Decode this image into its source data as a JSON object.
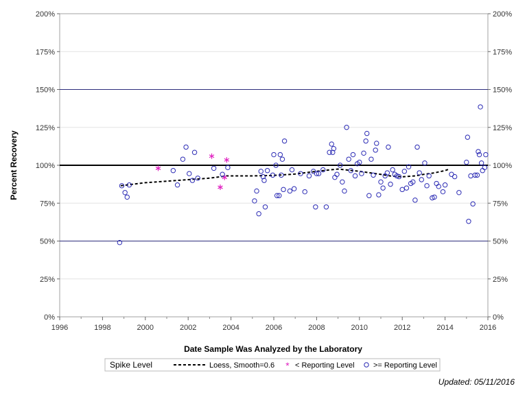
{
  "chart_data": {
    "type": "scatter",
    "xlabel": "Date Sample Was Analyzed by the Laboratory",
    "ylabel": "Percent Recovery",
    "xlim": [
      1996,
      2016
    ],
    "ylim": [
      0,
      200
    ],
    "x_ticks": [
      1996,
      1998,
      2000,
      2002,
      2004,
      2006,
      2008,
      2010,
      2012,
      2014,
      2016
    ],
    "y_ticks": [
      0,
      25,
      50,
      75,
      100,
      125,
      150,
      175,
      200
    ],
    "y_tick_labels": [
      "0%",
      "25%",
      "50%",
      "75%",
      "100%",
      "125%",
      "150%",
      "175%",
      "200%"
    ],
    "reference_lines": [
      {
        "y": 100,
        "style": "thick-black"
      },
      {
        "y": 150,
        "style": "thin-navy"
      },
      {
        "y": 50,
        "style": "thin-navy"
      }
    ],
    "grid": true,
    "right_axis": true,
    "legend": {
      "title": "Spike Level",
      "position": "bottom",
      "items": [
        {
          "label": "Loess, Smooth=0.6",
          "marker": "dashed-line",
          "color": "#000000"
        },
        {
          "label": "< Reporting Level",
          "marker": "asterisk",
          "color": "#e020c0"
        },
        {
          "label": ">= Reporting Level",
          "marker": "circle",
          "color": "#2a2ab4"
        }
      ]
    },
    "series": [
      {
        "name": "Loess, Smooth=0.6",
        "style": "dashed",
        "color": "#000000",
        "points": [
          [
            1998.85,
            86.5
          ],
          [
            2000,
            88.5
          ],
          [
            2001,
            89.5
          ],
          [
            2002,
            90.5
          ],
          [
            2003,
            91.5
          ],
          [
            2003.8,
            93
          ],
          [
            2005,
            93
          ],
          [
            2006,
            93.3
          ],
          [
            2007,
            94.2
          ],
          [
            2008,
            96
          ],
          [
            2009,
            97.5
          ],
          [
            2010,
            96
          ],
          [
            2011,
            94
          ],
          [
            2011.5,
            92.8
          ],
          [
            2012,
            92.4
          ],
          [
            2012.6,
            93
          ],
          [
            2013,
            94
          ],
          [
            2013.5,
            95
          ],
          [
            2014,
            96.5
          ],
          [
            2014.2,
            97.5
          ]
        ]
      },
      {
        "name": "< Reporting Level",
        "marker": "asterisk",
        "color": "#e020c0",
        "points": [
          [
            2000.6,
            98
          ],
          [
            2003.1,
            106
          ],
          [
            2003.5,
            85.5
          ],
          [
            2003.7,
            92
          ],
          [
            2003.8,
            103.5
          ]
        ]
      },
      {
        "name": ">= Reporting Level",
        "marker": "circle",
        "color": "#2a2ab4",
        "points": [
          [
            1998.8,
            49
          ],
          [
            1998.9,
            86.5
          ],
          [
            1999.05,
            82
          ],
          [
            1999.15,
            79
          ],
          [
            1999.25,
            87
          ],
          [
            2001.3,
            96.5
          ],
          [
            2001.5,
            87
          ],
          [
            2001.75,
            104
          ],
          [
            2001.9,
            112
          ],
          [
            2002.05,
            94.5
          ],
          [
            2002.2,
            90
          ],
          [
            2002.3,
            108.5
          ],
          [
            2002.45,
            91.5
          ],
          [
            2003.2,
            98
          ],
          [
            2003.6,
            94
          ],
          [
            2003.85,
            98.5
          ],
          [
            2005.1,
            76.5
          ],
          [
            2005.2,
            83
          ],
          [
            2005.3,
            68
          ],
          [
            2005.4,
            96
          ],
          [
            2005.5,
            92.5
          ],
          [
            2005.55,
            90
          ],
          [
            2005.6,
            72.5
          ],
          [
            2005.7,
            96.5
          ],
          [
            2005.95,
            93.5
          ],
          [
            2006.0,
            107
          ],
          [
            2006.1,
            100
          ],
          [
            2006.15,
            80
          ],
          [
            2006.25,
            80
          ],
          [
            2006.3,
            107
          ],
          [
            2006.35,
            93.5
          ],
          [
            2006.4,
            104
          ],
          [
            2006.45,
            84
          ],
          [
            2006.5,
            116
          ],
          [
            2006.75,
            83
          ],
          [
            2006.85,
            97
          ],
          [
            2006.95,
            84.5
          ],
          [
            2007.25,
            94.5
          ],
          [
            2007.45,
            82.5
          ],
          [
            2007.65,
            93
          ],
          [
            2007.85,
            96
          ],
          [
            2007.95,
            72.5
          ],
          [
            2008.0,
            94.5
          ],
          [
            2008.1,
            94.5
          ],
          [
            2008.3,
            97
          ],
          [
            2008.45,
            72.5
          ],
          [
            2008.6,
            108.5
          ],
          [
            2008.7,
            114
          ],
          [
            2008.75,
            108.5
          ],
          [
            2008.8,
            111
          ],
          [
            2008.85,
            92
          ],
          [
            2008.95,
            94
          ],
          [
            2009.1,
            100
          ],
          [
            2009.2,
            89
          ],
          [
            2009.3,
            83
          ],
          [
            2009.4,
            125
          ],
          [
            2009.5,
            104
          ],
          [
            2009.6,
            96.5
          ],
          [
            2009.7,
            107
          ],
          [
            2009.8,
            93
          ],
          [
            2009.9,
            101
          ],
          [
            2010.0,
            102
          ],
          [
            2010.1,
            94.5
          ],
          [
            2010.2,
            108
          ],
          [
            2010.3,
            116
          ],
          [
            2010.35,
            121
          ],
          [
            2010.45,
            80
          ],
          [
            2010.55,
            104
          ],
          [
            2010.65,
            93.5
          ],
          [
            2010.75,
            110
          ],
          [
            2010.8,
            114.5
          ],
          [
            2010.9,
            80.5
          ],
          [
            2011.0,
            89
          ],
          [
            2011.1,
            85
          ],
          [
            2011.2,
            93
          ],
          [
            2011.3,
            95
          ],
          [
            2011.35,
            112
          ],
          [
            2011.45,
            87.5
          ],
          [
            2011.55,
            97
          ],
          [
            2011.65,
            94
          ],
          [
            2011.75,
            93
          ],
          [
            2011.85,
            92.5
          ],
          [
            2012.0,
            84
          ],
          [
            2012.1,
            96
          ],
          [
            2012.2,
            85
          ],
          [
            2012.3,
            99
          ],
          [
            2012.4,
            88
          ],
          [
            2012.5,
            89
          ],
          [
            2012.6,
            77
          ],
          [
            2012.7,
            112
          ],
          [
            2012.8,
            95
          ],
          [
            2012.9,
            90.5
          ],
          [
            2013.05,
            101.5
          ],
          [
            2013.15,
            86.5
          ],
          [
            2013.25,
            93
          ],
          [
            2013.4,
            78.5
          ],
          [
            2013.5,
            79
          ],
          [
            2013.6,
            88
          ],
          [
            2013.7,
            86
          ],
          [
            2013.9,
            82.5
          ],
          [
            2014.0,
            87
          ],
          [
            2014.3,
            94
          ],
          [
            2014.45,
            92.5
          ],
          [
            2014.65,
            82
          ],
          [
            2015.0,
            102
          ],
          [
            2015.05,
            118.5
          ],
          [
            2015.1,
            63
          ],
          [
            2015.2,
            93
          ],
          [
            2015.3,
            74.5
          ],
          [
            2015.4,
            93.5
          ],
          [
            2015.5,
            93.5
          ],
          [
            2015.55,
            109
          ],
          [
            2015.6,
            107
          ],
          [
            2015.65,
            138.5
          ],
          [
            2015.7,
            101.5
          ],
          [
            2015.75,
            96.5
          ],
          [
            2015.85,
            98.5
          ],
          [
            2015.9,
            107
          ]
        ]
      }
    ]
  },
  "footer": {
    "updated": "Updated: 05/11/2016"
  }
}
